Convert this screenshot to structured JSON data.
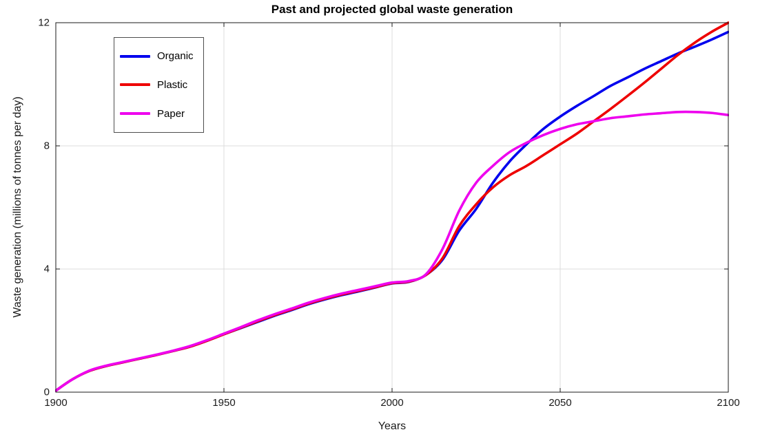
{
  "chart_data": {
    "type": "line",
    "title": "Past and projected global waste generation",
    "xlabel": "Years",
    "ylabel": "Waste generation (millions of tonnes per day)",
    "xlim": [
      1900,
      2100
    ],
    "ylim": [
      0,
      12
    ],
    "xticks": [
      1900,
      1950,
      2000,
      2050,
      2100
    ],
    "yticks": [
      0,
      4,
      8,
      12
    ],
    "grid": true,
    "legend_position": "top-left-inside",
    "colors": {
      "axis": "#1a1a1a",
      "grid": "#dcdcdc",
      "background": "#ffffff",
      "organic": "#0000ee",
      "plastic": "#ee0000",
      "paper": "#ee00ee"
    },
    "x": [
      1900,
      1905,
      1910,
      1915,
      1920,
      1925,
      1930,
      1935,
      1940,
      1945,
      1950,
      1955,
      1960,
      1965,
      1970,
      1975,
      1980,
      1985,
      1990,
      1995,
      2000,
      2005,
      2010,
      2015,
      2020,
      2025,
      2030,
      2035,
      2040,
      2045,
      2050,
      2055,
      2060,
      2065,
      2070,
      2075,
      2080,
      2085,
      2090,
      2095,
      2100
    ],
    "series": [
      {
        "name": "Organic",
        "color": "#0000ee",
        "y": [
          0.05,
          0.42,
          0.69,
          0.85,
          0.97,
          1.09,
          1.21,
          1.34,
          1.48,
          1.67,
          1.88,
          2.08,
          2.28,
          2.48,
          2.66,
          2.85,
          3.01,
          3.15,
          3.27,
          3.4,
          3.53,
          3.58,
          3.8,
          4.3,
          5.25,
          5.95,
          6.8,
          7.5,
          8.05,
          8.55,
          8.95,
          9.3,
          9.62,
          9.95,
          10.22,
          10.5,
          10.75,
          11.0,
          11.22,
          11.45,
          11.7
        ]
      },
      {
        "name": "Plastic",
        "color": "#ee0000",
        "y": [
          0.05,
          0.42,
          0.69,
          0.85,
          0.97,
          1.09,
          1.21,
          1.34,
          1.48,
          1.67,
          1.88,
          2.09,
          2.3,
          2.5,
          2.68,
          2.87,
          3.03,
          3.17,
          3.29,
          3.41,
          3.54,
          3.59,
          3.8,
          4.35,
          5.4,
          6.1,
          6.65,
          7.05,
          7.35,
          7.7,
          8.05,
          8.4,
          8.8,
          9.2,
          9.62,
          10.05,
          10.5,
          10.95,
          11.35,
          11.7,
          12.0
        ]
      },
      {
        "name": "Paper",
        "color": "#ee00ee",
        "y": [
          0.05,
          0.42,
          0.7,
          0.86,
          0.98,
          1.1,
          1.22,
          1.35,
          1.5,
          1.69,
          1.9,
          2.11,
          2.33,
          2.53,
          2.71,
          2.9,
          3.06,
          3.2,
          3.32,
          3.44,
          3.56,
          3.61,
          3.82,
          4.65,
          5.9,
          6.8,
          7.35,
          7.8,
          8.1,
          8.35,
          8.55,
          8.7,
          8.8,
          8.9,
          8.96,
          9.02,
          9.06,
          9.1,
          9.1,
          9.07,
          9.0
        ]
      }
    ]
  }
}
